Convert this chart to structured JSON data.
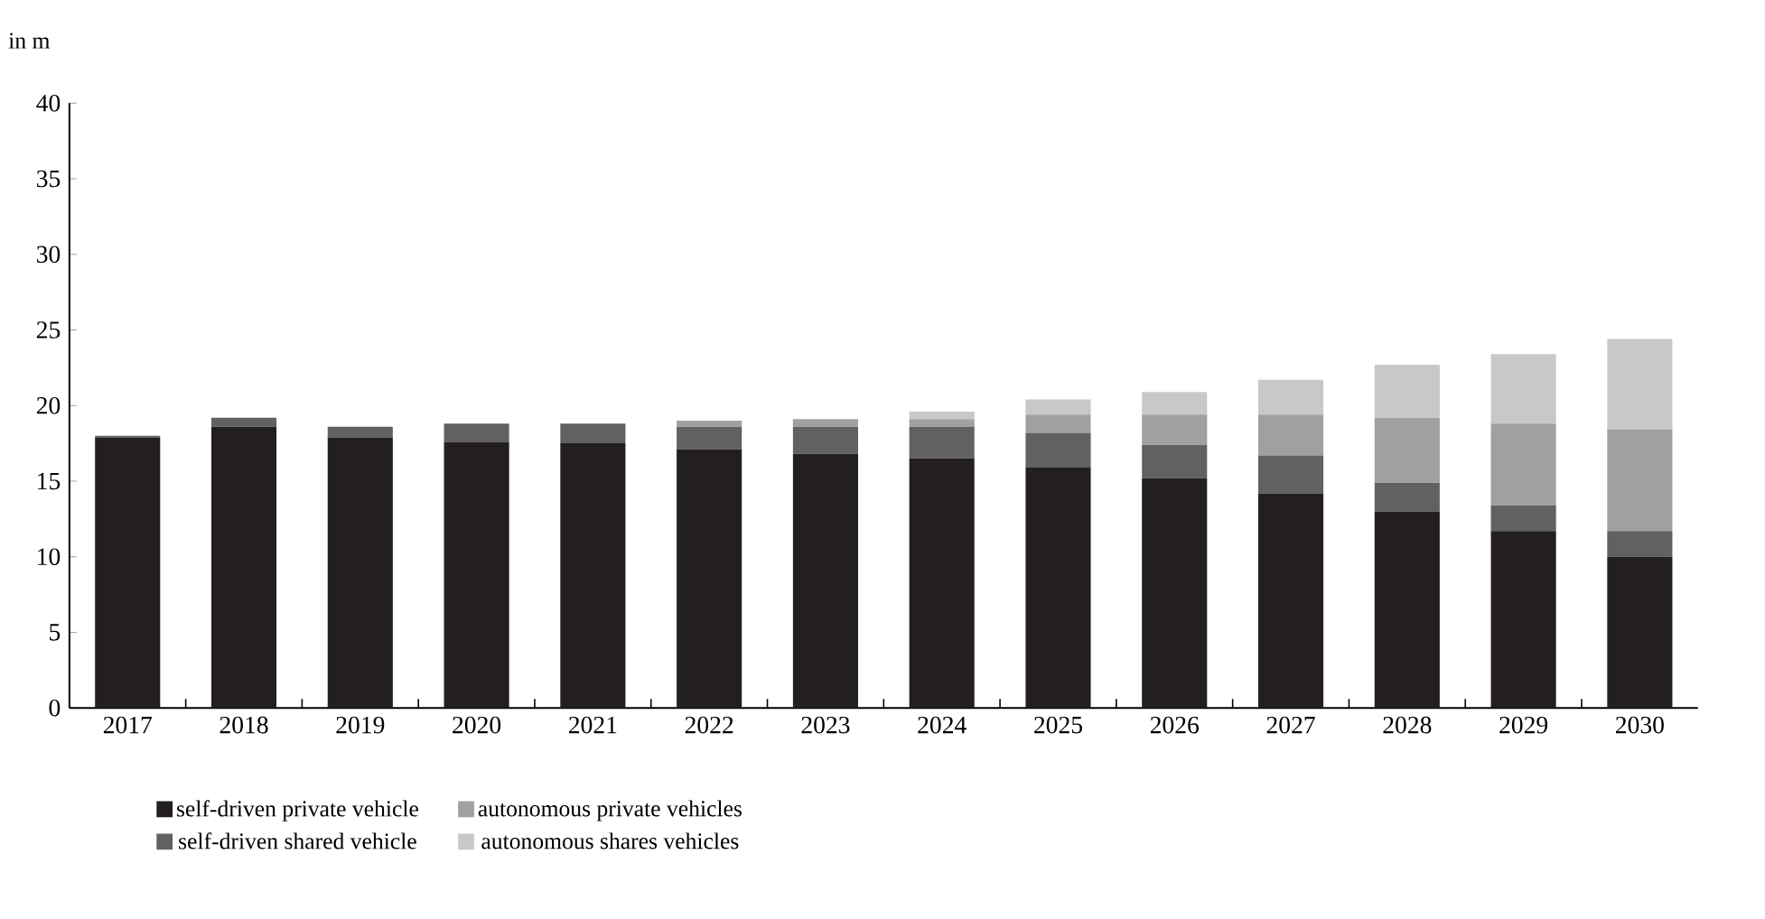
{
  "chart_data": {
    "type": "bar",
    "stacked": true,
    "ylabel": "in m",
    "categories": [
      "2017",
      "2018",
      "2019",
      "2020",
      "2021",
      "2022",
      "2023",
      "2024",
      "2025",
      "2026",
      "2027",
      "2028",
      "2029",
      "2030"
    ],
    "series": [
      {
        "name": "self-driven private vehicle",
        "color": "#231f20",
        "values": [
          17.9,
          18.6,
          17.9,
          17.6,
          17.5,
          17.1,
          16.8,
          16.5,
          15.9,
          15.2,
          14.2,
          13.0,
          11.7,
          10.0
        ]
      },
      {
        "name": "self-driven shared vehicle",
        "color": "#616161",
        "values": [
          0.1,
          0.6,
          0.7,
          1.2,
          1.3,
          1.5,
          1.8,
          2.1,
          2.3,
          2.2,
          2.5,
          1.9,
          1.7,
          1.7
        ]
      },
      {
        "name": "autonomous private vehicles",
        "color": "#a0a0a0",
        "values": [
          0,
          0,
          0,
          0,
          0,
          0.4,
          0.5,
          0.5,
          1.2,
          2.0,
          2.7,
          4.3,
          5.4,
          6.7
        ]
      },
      {
        "name": "autonomous shares vehicles",
        "color": "#c8c8c8",
        "values": [
          0,
          0,
          0,
          0,
          0,
          0,
          0,
          0.5,
          1.0,
          1.5,
          2.3,
          3.5,
          4.6,
          6.0
        ]
      }
    ],
    "ylim": [
      0,
      40
    ],
    "yticks": [
      0,
      5,
      10,
      15,
      20,
      25,
      30,
      35,
      40
    ],
    "grid": false,
    "legend": "bottom"
  }
}
